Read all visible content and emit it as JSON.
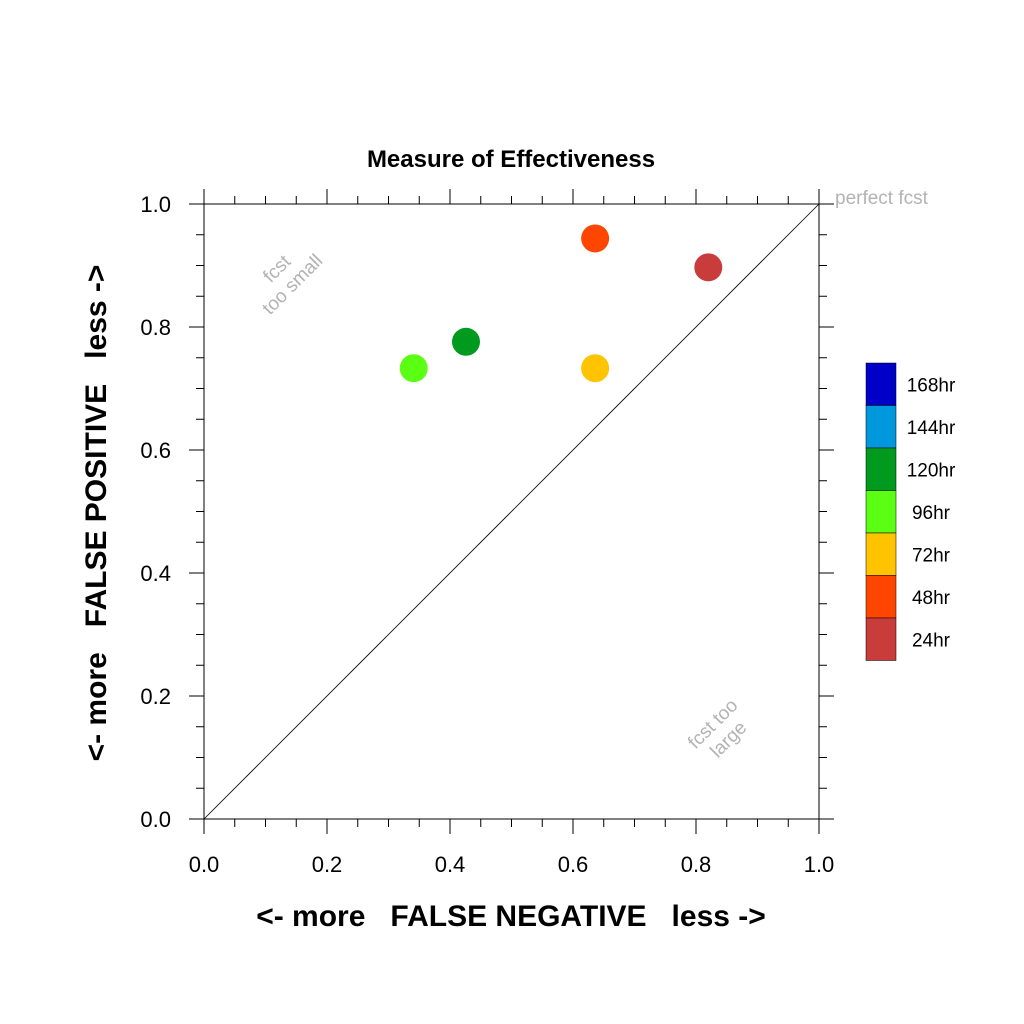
{
  "chart_data": {
    "type": "scatter",
    "title": "Measure of Effectiveness",
    "xlabel": "<- more   FALSE NEGATIVE   less ->",
    "ylabel": "<- more   FALSE POSITIVE   less ->",
    "xlim": [
      0.0,
      1.0
    ],
    "ylim": [
      0.0,
      1.0
    ],
    "x_ticks": [
      "0.0",
      "0.2",
      "0.4",
      "0.6",
      "0.8",
      "1.0"
    ],
    "y_ticks": [
      "0.0",
      "0.2",
      "0.4",
      "0.6",
      "0.8",
      "1.0"
    ],
    "grid": false,
    "reference_line": {
      "from": [
        0.0,
        0.0
      ],
      "to": [
        1.0,
        1.0
      ]
    },
    "annotations": {
      "perfect": "perfect fcst",
      "too_small_1": "fcst",
      "too_small_2": "too small",
      "too_large_1": "fcst too",
      "too_large_2": "large"
    },
    "legend_position": "right",
    "legend": [
      {
        "label": "168hr",
        "color": "#0000c8"
      },
      {
        "label": "144hr",
        "color": "#0098dc"
      },
      {
        "label": "120hr",
        "color": "#009b1e"
      },
      {
        "label": "96hr",
        "color": "#5aff14"
      },
      {
        "label": "72hr",
        "color": "#ffc300"
      },
      {
        "label": "48hr",
        "color": "#ff4600"
      },
      {
        "label": "24hr",
        "color": "#c83c3c"
      }
    ],
    "points": [
      {
        "series": "24hr",
        "x": 0.82,
        "y": 0.897,
        "color": "#c83c3c"
      },
      {
        "series": "48hr",
        "x": 0.636,
        "y": 0.944,
        "color": "#ff4600"
      },
      {
        "series": "72hr",
        "x": 0.636,
        "y": 0.733,
        "color": "#ffc300"
      },
      {
        "series": "96hr",
        "x": 0.341,
        "y": 0.733,
        "color": "#5aff14"
      },
      {
        "series": "120hr",
        "x": 0.426,
        "y": 0.776,
        "color": "#009b1e"
      }
    ]
  }
}
